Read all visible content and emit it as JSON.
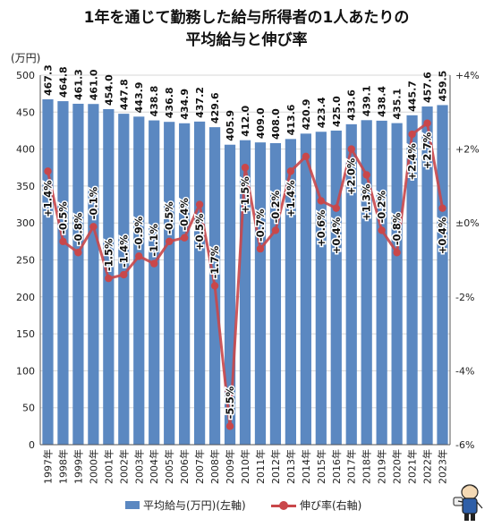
{
  "title_lines": [
    "1年を通じて勤務した給与所得者の1人あたりの",
    "平均給与と伸び率"
  ],
  "left_unit": "(万円)",
  "legend": {
    "bars": "平均給与(万円)(左軸)",
    "line": "伸び率(右軸)"
  },
  "colors": {
    "bar": "#5b88c1",
    "line": "#c9474a",
    "grid": "#d7d7d7"
  },
  "mascot_icon": "mascot-character-icon",
  "chart_data": {
    "type": "bar+line",
    "categories": [
      "1997年",
      "1998年",
      "1999年",
      "2000年",
      "2001年",
      "2002年",
      "2003年",
      "2004年",
      "2005年",
      "2006年",
      "2007年",
      "2008年",
      "2009年",
      "2010年",
      "2011年",
      "2012年",
      "2013年",
      "2014年",
      "2015年",
      "2016年",
      "2017年",
      "2018年",
      "2019年",
      "2020年",
      "2021年",
      "2022年",
      "2023年"
    ],
    "series": [
      {
        "name": "平均給与(万円)(左軸)",
        "axis": "left",
        "type": "bar",
        "values": [
          467.3,
          464.8,
          461.3,
          461.0,
          454.0,
          447.8,
          443.9,
          438.8,
          436.8,
          434.9,
          437.2,
          429.6,
          405.9,
          412.0,
          409.0,
          408.0,
          413.6,
          420.9,
          423.4,
          425.0,
          433.6,
          439.1,
          438.4,
          435.1,
          445.7,
          457.6,
          459.5
        ],
        "labels": [
          "467.3",
          "464.8",
          "461.3",
          "461.0",
          "454.0",
          "447.8",
          "443.9",
          "438.8",
          "436.8",
          "434.9",
          "437.2",
          "429.6",
          "405.9",
          "412.0",
          "409.0",
          "408.0",
          "413.6",
          "420.9",
          "423.4",
          "425.0",
          "433.6",
          "439.1",
          "438.4",
          "435.1",
          "445.7",
          "457.6",
          "459.5"
        ]
      },
      {
        "name": "伸び率(右軸)",
        "axis": "right",
        "type": "line",
        "values": [
          1.4,
          -0.5,
          -0.8,
          -0.1,
          -1.5,
          -1.4,
          -0.9,
          -1.1,
          -0.5,
          -0.4,
          0.5,
          -1.7,
          -5.5,
          1.5,
          -0.7,
          -0.2,
          1.4,
          1.8,
          0.6,
          0.4,
          2.0,
          1.3,
          -0.2,
          -0.8,
          2.4,
          2.7,
          0.4
        ],
        "labels": [
          "+1.4%",
          "-0.5%",
          "-0.8%",
          "-0.1%",
          "-1.5%",
          "-1.4%",
          "-0.9%",
          "-1.1%",
          "-0.5%",
          "-0.4%",
          "+0.5%",
          "-1.7%",
          "-5.5%",
          "+1.5%",
          "-0.7%",
          "-0.2%",
          "+1.4%",
          "",
          "+0.6%",
          "+0.4%",
          "+2.0%",
          "+1.3%",
          "-0.2%",
          "-0.8%",
          "+2.4%",
          "+2.7%",
          "+0.4%"
        ]
      }
    ],
    "y_left": {
      "ylim": [
        0,
        500
      ],
      "ticks": [
        0,
        50,
        100,
        150,
        200,
        250,
        300,
        350,
        400,
        450,
        500
      ],
      "tick_labels": [
        "0",
        "50",
        "100",
        "150",
        "200",
        "250",
        "300",
        "350",
        "400",
        "450",
        "500"
      ]
    },
    "y_right": {
      "ylim": [
        -6,
        4
      ],
      "ticks": [
        -6,
        -4,
        -2,
        0,
        2,
        4
      ],
      "tick_labels": [
        "-6%",
        "-4%",
        "-2%",
        "±0%",
        "+2%",
        "+4%"
      ]
    },
    "grid": true,
    "legend_position": "bottom"
  }
}
